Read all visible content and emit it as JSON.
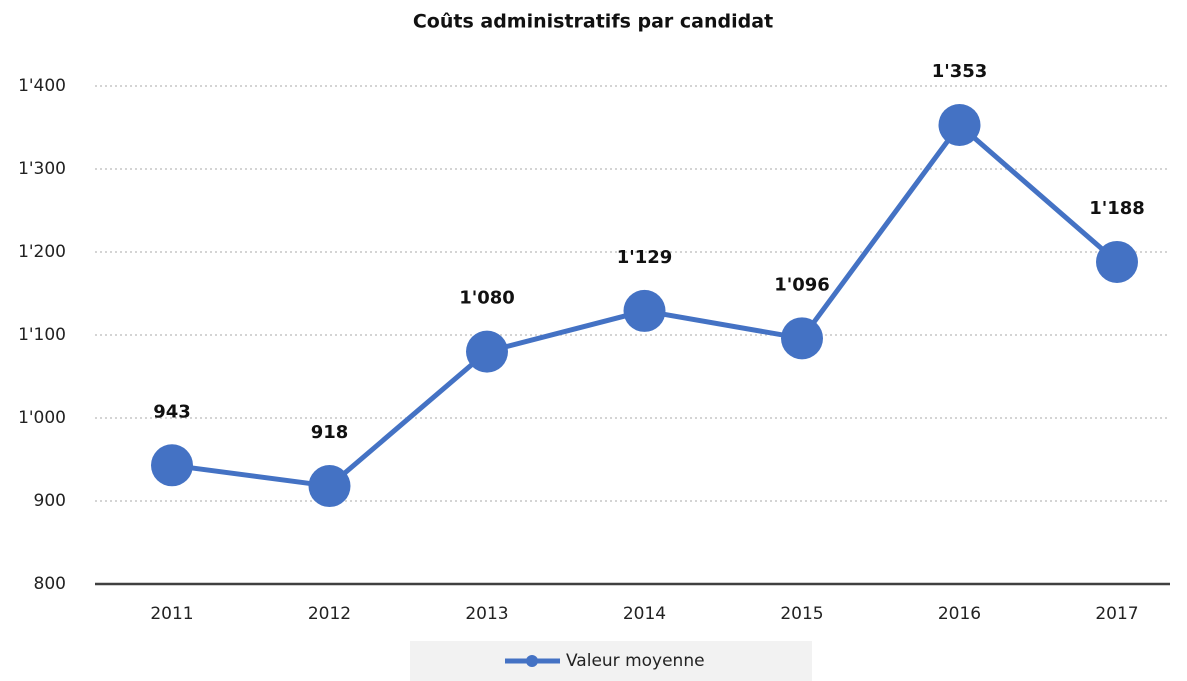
{
  "chart_data": {
    "type": "line",
    "title": "Coûts administratifs par candidat",
    "categories": [
      "2011",
      "2012",
      "2013",
      "2014",
      "2015",
      "2016",
      "2017"
    ],
    "series": [
      {
        "name": "Valeur moyenne",
        "color": "#4472c4",
        "values": [
          943,
          918,
          1080,
          1129,
          1096,
          1353,
          1188
        ],
        "value_labels": [
          "943",
          "918",
          "1'080",
          "1'129",
          "1'096",
          "1'353",
          "1'188"
        ]
      }
    ],
    "ylim": [
      800,
      1400
    ],
    "yticks": [
      800,
      900,
      {
        "value": 1000,
        "label": "1'000"
      },
      {
        "value": 1100,
        "label": "1'100"
      },
      {
        "value": 1200,
        "label": "1'200"
      },
      {
        "value": 1300,
        "label": "1'300"
      },
      {
        "value": 1400,
        "label": "1'400"
      }
    ],
    "grid": true,
    "legend": "bottom"
  }
}
